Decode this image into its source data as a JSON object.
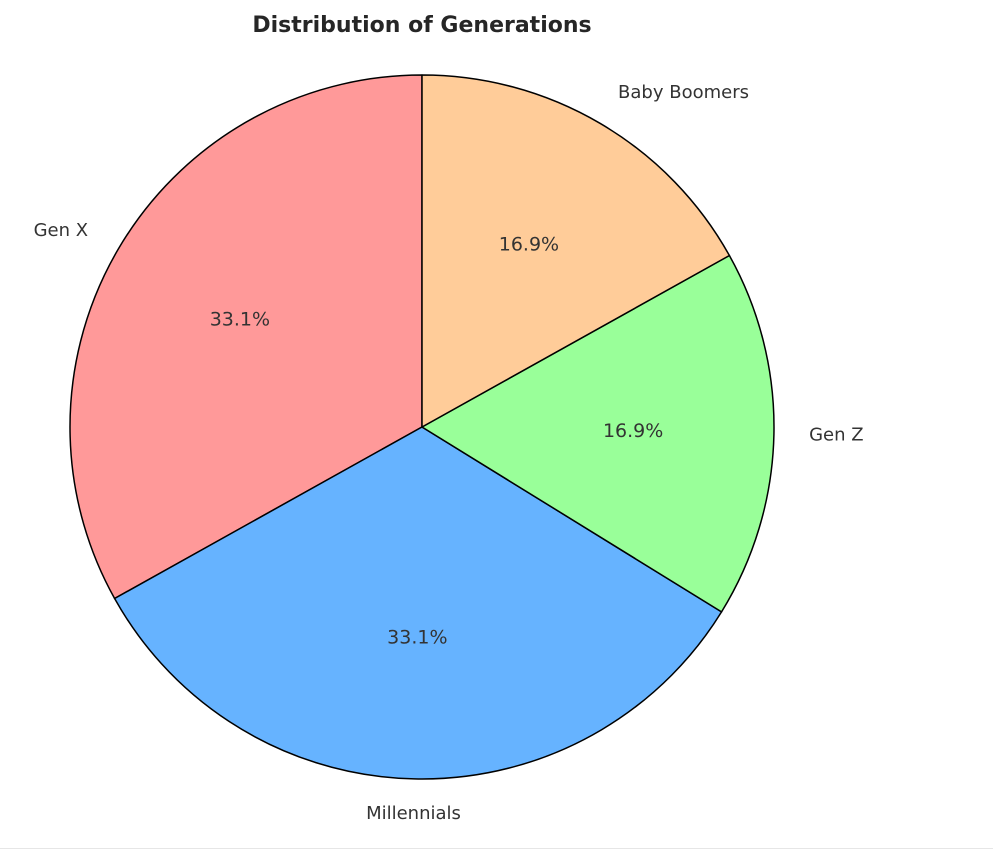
{
  "chart_data": {
    "type": "pie",
    "title": "Distribution of Generations",
    "start_angle_deg": 90,
    "direction": "counterclockwise",
    "legend": "none",
    "slices": [
      {
        "label": "Gen X",
        "value": 33.1,
        "pct_label": "33.1%",
        "color": "#ff9999"
      },
      {
        "label": "Millennials",
        "value": 33.1,
        "pct_label": "33.1%",
        "color": "#66b3ff"
      },
      {
        "label": "Gen Z",
        "value": 16.9,
        "pct_label": "16.9%",
        "color": "#99ff99"
      },
      {
        "label": "Baby Boomers",
        "value": 16.9,
        "pct_label": "16.9%",
        "color": "#ffcc99"
      }
    ]
  }
}
